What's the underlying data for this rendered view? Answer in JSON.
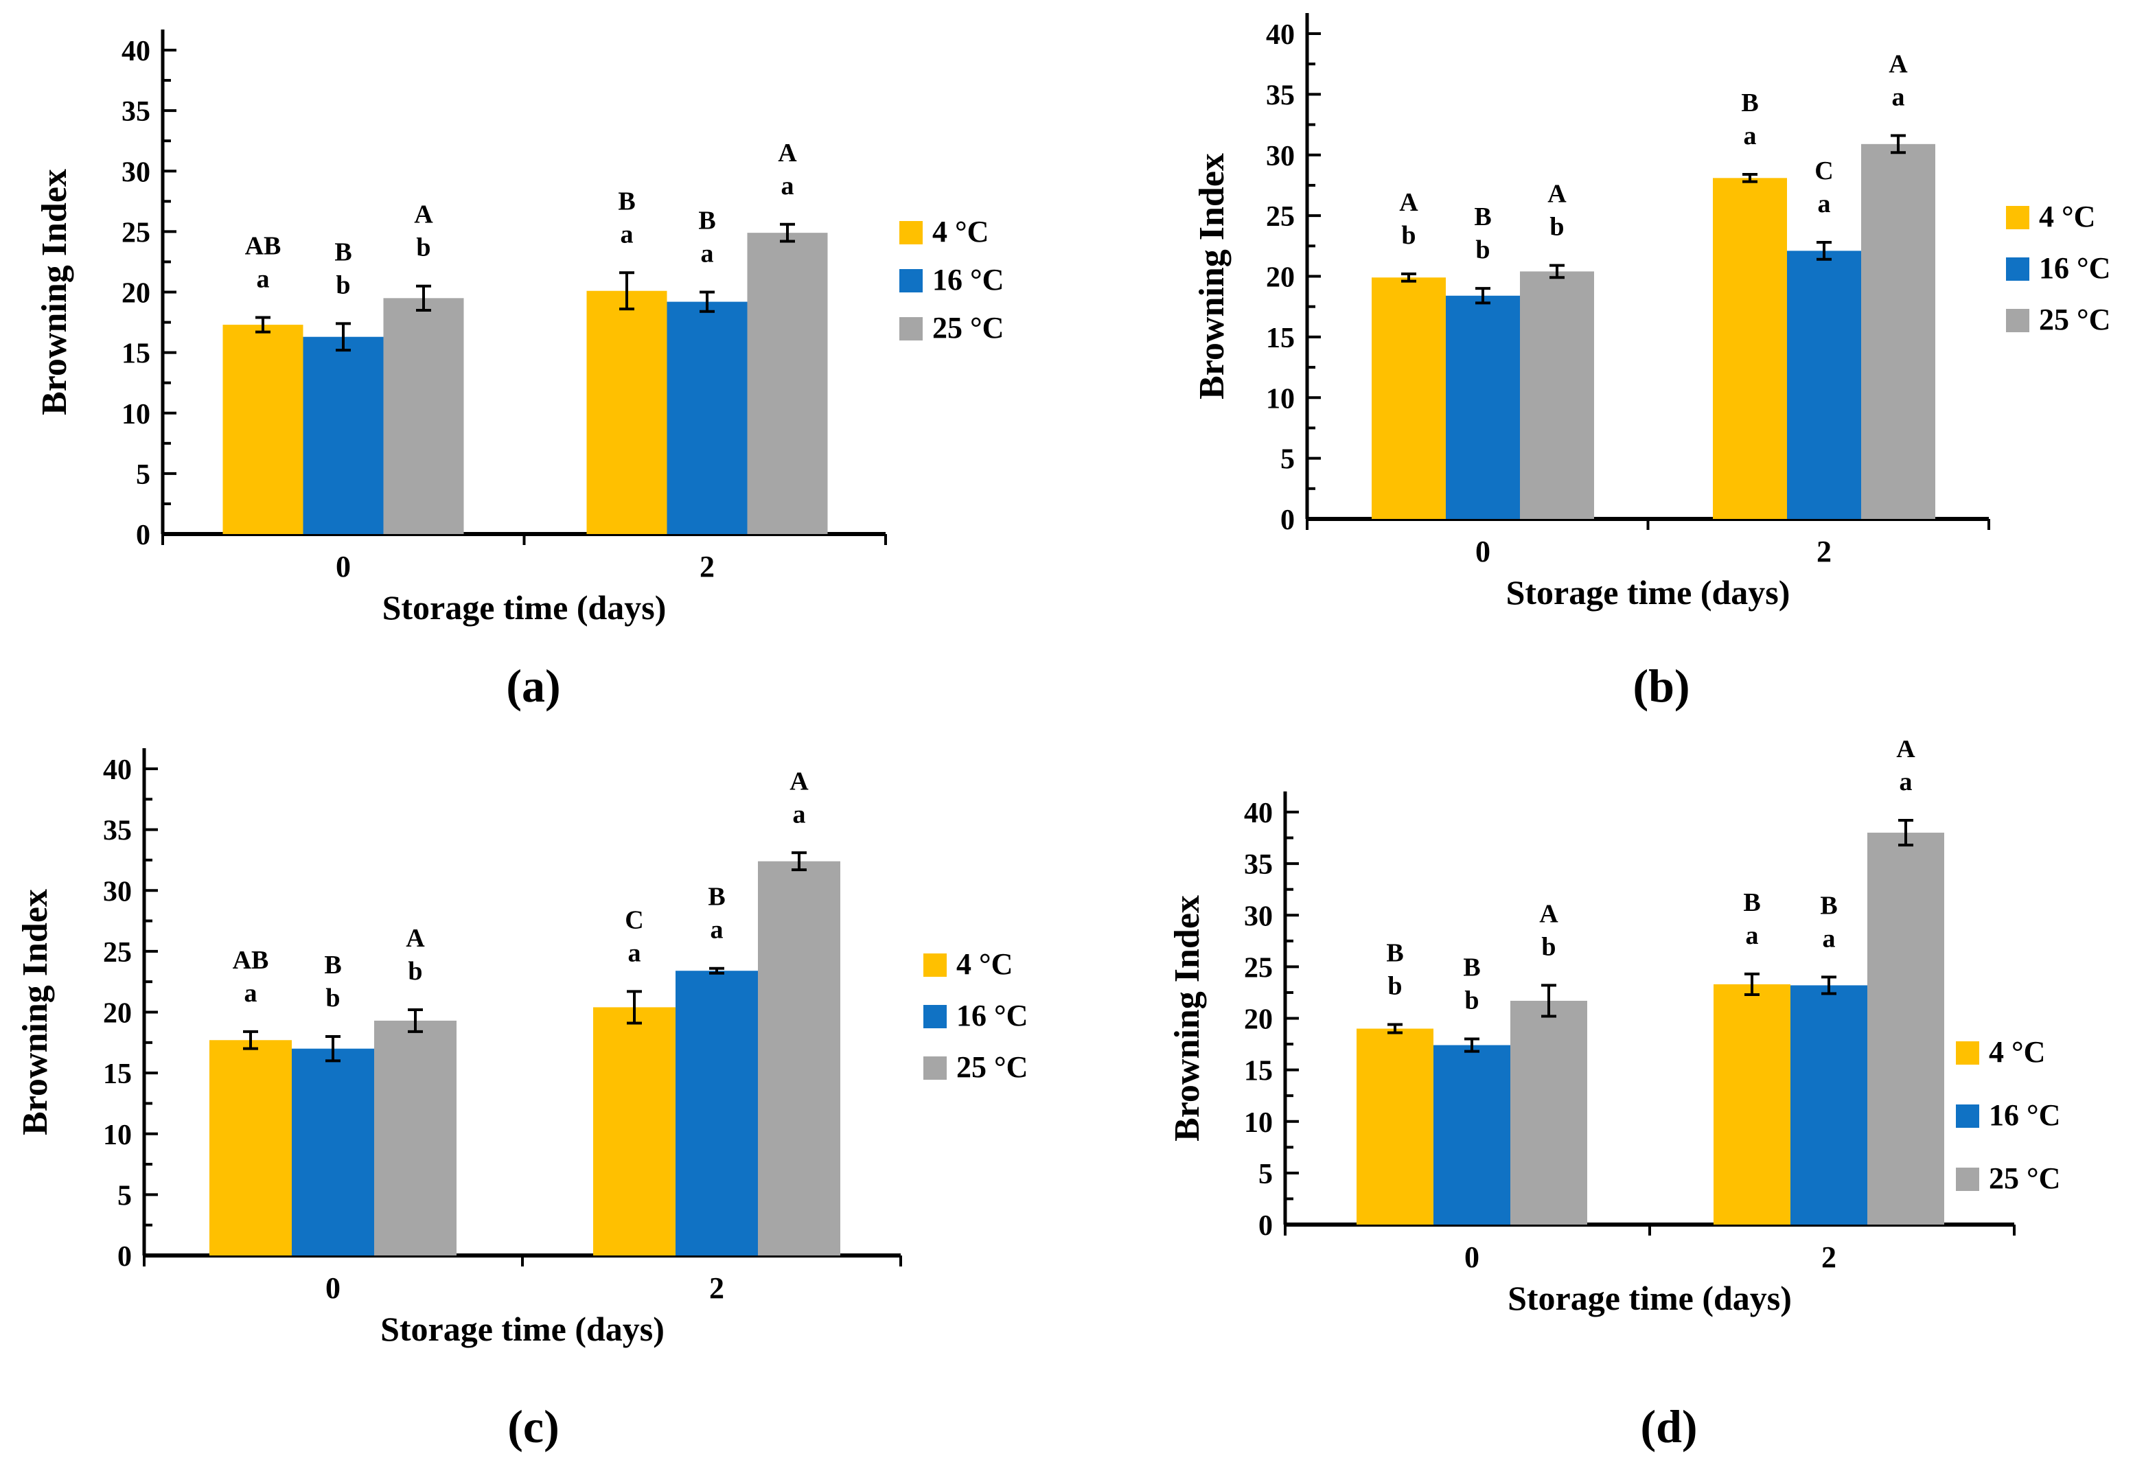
{
  "figure": {
    "background": "#FFFFFF",
    "ylabel": "Browning Index",
    "xlabel": "Storage time (days)",
    "panel_labels": [
      "(a)",
      "(b)",
      "(c)",
      "(d)"
    ],
    "series_colors": {
      "4 °C": "#FFC000",
      "16 °C": "#1072C4",
      "25 °C": "#A6A6A6"
    }
  },
  "chart_data": [
    {
      "id": "a",
      "panel_label": "(a)",
      "type": "bar",
      "title": "",
      "xlabel": "Storage time (days)",
      "ylabel": "Browning Index",
      "categories": [
        "0",
        "2"
      ],
      "ylim": [
        0,
        40
      ],
      "ytick_step": 5,
      "yticks": [
        0,
        5,
        10,
        15,
        20,
        25,
        30,
        35,
        40
      ],
      "grid": false,
      "legend_position": "right",
      "legend": [
        "4 °C",
        "16 °C",
        "25 °C"
      ],
      "series": [
        {
          "name": "4 °C",
          "color": "#FFC000",
          "values": [
            17.3,
            20.1
          ],
          "errors": [
            0.6,
            1.5
          ],
          "letters": [
            [
              "AB",
              "a"
            ],
            [
              "B",
              "a"
            ]
          ]
        },
        {
          "name": "16 °C",
          "color": "#1072C4",
          "values": [
            16.3,
            19.2
          ],
          "errors": [
            1.1,
            0.8
          ],
          "letters": [
            [
              "B",
              "b"
            ],
            [
              "B",
              "a"
            ]
          ]
        },
        {
          "name": "25 °C",
          "color": "#A6A6A6",
          "values": [
            19.5,
            24.9
          ],
          "errors": [
            1.0,
            0.7
          ],
          "letters": [
            [
              "A",
              "b"
            ],
            [
              "A",
              "a"
            ]
          ]
        }
      ]
    },
    {
      "id": "b",
      "panel_label": "(b)",
      "type": "bar",
      "title": "",
      "xlabel": "Storage time (days)",
      "ylabel": "Browning Index",
      "categories": [
        "0",
        "2"
      ],
      "ylim": [
        0,
        40
      ],
      "ytick_step": 5,
      "yticks": [
        0,
        5,
        10,
        15,
        20,
        25,
        30,
        35,
        40
      ],
      "grid": false,
      "legend_position": "right",
      "legend": [
        "4 °C",
        "16 °C",
        "25 °C"
      ],
      "series": [
        {
          "name": "4 °C",
          "color": "#FFC000",
          "values": [
            19.9,
            28.1
          ],
          "errors": [
            0.3,
            0.3
          ],
          "letters": [
            [
              "A",
              "b"
            ],
            [
              "B",
              "a"
            ]
          ]
        },
        {
          "name": "16 °C",
          "color": "#1072C4",
          "values": [
            18.4,
            22.1
          ],
          "errors": [
            0.6,
            0.7
          ],
          "letters": [
            [
              "B",
              "b"
            ],
            [
              "C",
              "a"
            ]
          ]
        },
        {
          "name": "25 °C",
          "color": "#A6A6A6",
          "values": [
            20.4,
            30.9
          ],
          "errors": [
            0.5,
            0.7
          ],
          "letters": [
            [
              "A",
              "b"
            ],
            [
              "A",
              "a"
            ]
          ]
        }
      ]
    },
    {
      "id": "c",
      "panel_label": "(c)",
      "type": "bar",
      "title": "",
      "xlabel": "Storage time (days)",
      "ylabel": "Browning Index",
      "categories": [
        "0",
        "2"
      ],
      "ylim": [
        0,
        40
      ],
      "ytick_step": 5,
      "yticks": [
        0,
        5,
        10,
        15,
        20,
        25,
        30,
        35,
        40
      ],
      "grid": false,
      "legend_position": "right",
      "legend": [
        "4 °C",
        "16 °C",
        "25 °C"
      ],
      "series": [
        {
          "name": "4 °C",
          "color": "#FFC000",
          "values": [
            17.7,
            20.4
          ],
          "errors": [
            0.7,
            1.3
          ],
          "letters": [
            [
              "AB",
              "a"
            ],
            [
              "C",
              "a"
            ]
          ]
        },
        {
          "name": "16 °C",
          "color": "#1072C4",
          "values": [
            17.0,
            23.4
          ],
          "errors": [
            1.0,
            0.2
          ],
          "letters": [
            [
              "B",
              "b"
            ],
            [
              "B",
              "a"
            ]
          ]
        },
        {
          "name": "25 °C",
          "color": "#A6A6A6",
          "values": [
            19.3,
            32.4
          ],
          "errors": [
            0.9,
            0.7
          ],
          "letters": [
            [
              "A",
              "b"
            ],
            [
              "A",
              "a"
            ]
          ]
        }
      ]
    },
    {
      "id": "d",
      "panel_label": "(d)",
      "type": "bar",
      "title": "",
      "xlabel": "Storage time (days)",
      "ylabel": "Browning Index",
      "categories": [
        "0",
        "2"
      ],
      "ylim": [
        0,
        40
      ],
      "ytick_step": 5,
      "yticks": [
        0,
        5,
        10,
        15,
        20,
        25,
        30,
        35,
        40
      ],
      "grid": false,
      "legend_position": "right",
      "legend": [
        "4 °C",
        "16 °C",
        "25 °C"
      ],
      "series": [
        {
          "name": "4 °C",
          "color": "#FFC000",
          "values": [
            19.0,
            23.3
          ],
          "errors": [
            0.4,
            1.0
          ],
          "letters": [
            [
              "B",
              "b"
            ],
            [
              "B",
              "a"
            ]
          ]
        },
        {
          "name": "16 °C",
          "color": "#1072C4",
          "values": [
            17.4,
            23.2
          ],
          "errors": [
            0.6,
            0.8
          ],
          "letters": [
            [
              "B",
              "b"
            ],
            [
              "B",
              "a"
            ]
          ]
        },
        {
          "name": "25 °C",
          "color": "#A6A6A6",
          "values": [
            21.7,
            38.0
          ],
          "errors": [
            1.5,
            1.2
          ],
          "letters": [
            [
              "A",
              "b"
            ],
            [
              "A",
              "a"
            ]
          ]
        }
      ]
    }
  ]
}
